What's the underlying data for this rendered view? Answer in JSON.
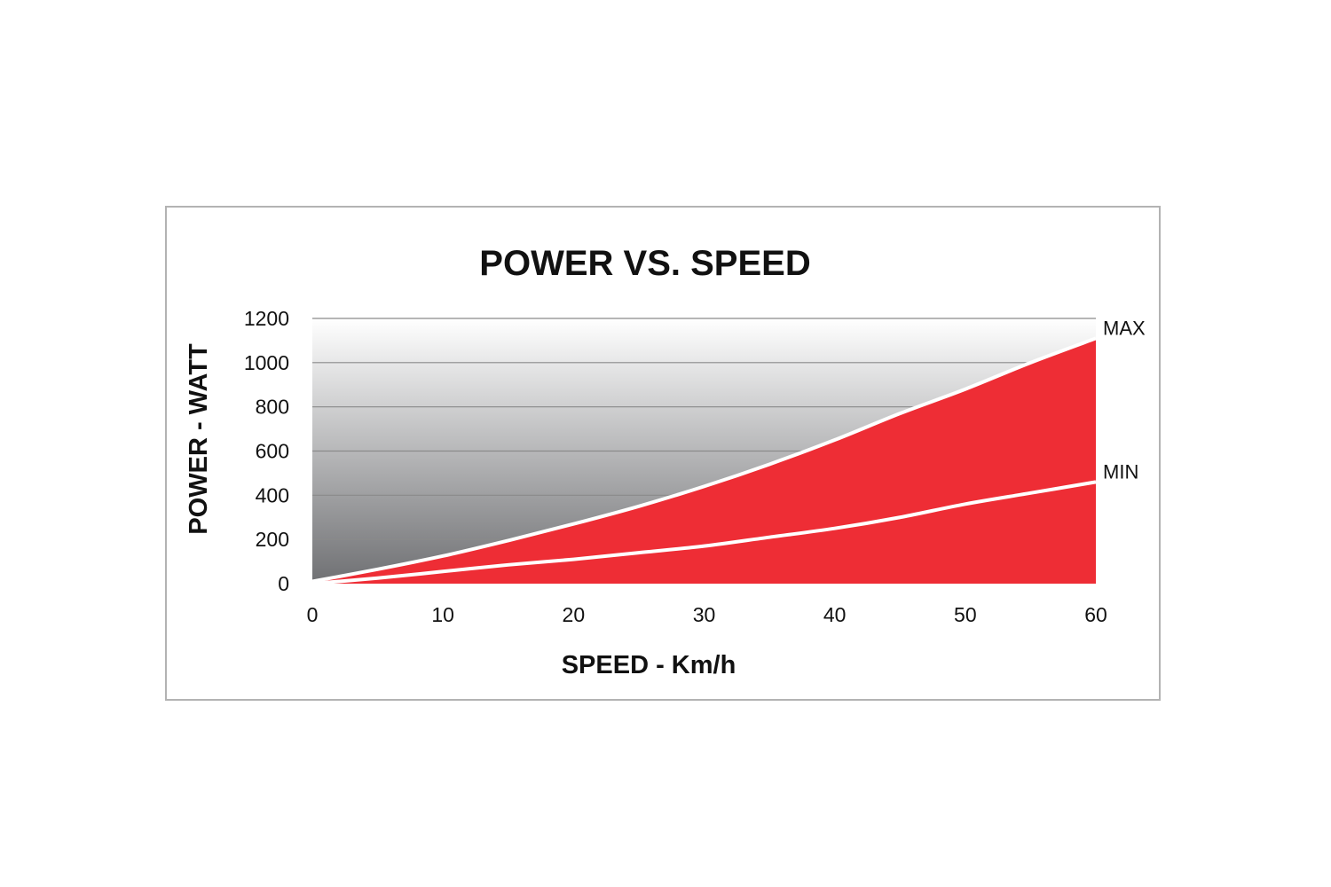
{
  "chart_data": {
    "type": "area",
    "title": "POWER VS. SPEED",
    "xlabel": "SPEED - Km/h",
    "ylabel": "POWER - WATT",
    "xlim": [
      0,
      60
    ],
    "ylim": [
      0,
      1200
    ],
    "x_ticks": [
      "0",
      "10",
      "20",
      "30",
      "40",
      "50",
      "60"
    ],
    "y_ticks": [
      "0",
      "200",
      "400",
      "600",
      "800",
      "1000",
      "1200"
    ],
    "grid": true,
    "series": [
      {
        "name": "MAX",
        "color": "#ee2d35",
        "x": [
          0,
          5,
          10,
          15,
          20,
          25,
          30,
          35,
          40,
          45,
          50,
          55,
          60
        ],
        "y": [
          10,
          65,
          125,
          195,
          270,
          350,
          440,
          540,
          650,
          770,
          880,
          1000,
          1110
        ]
      },
      {
        "name": "MIN",
        "color": "#ee2d35",
        "x": [
          0,
          5,
          10,
          15,
          20,
          25,
          30,
          35,
          40,
          45,
          50,
          55,
          60
        ],
        "y": [
          0,
          25,
          55,
          85,
          110,
          140,
          170,
          210,
          250,
          300,
          360,
          410,
          460
        ]
      }
    ]
  }
}
